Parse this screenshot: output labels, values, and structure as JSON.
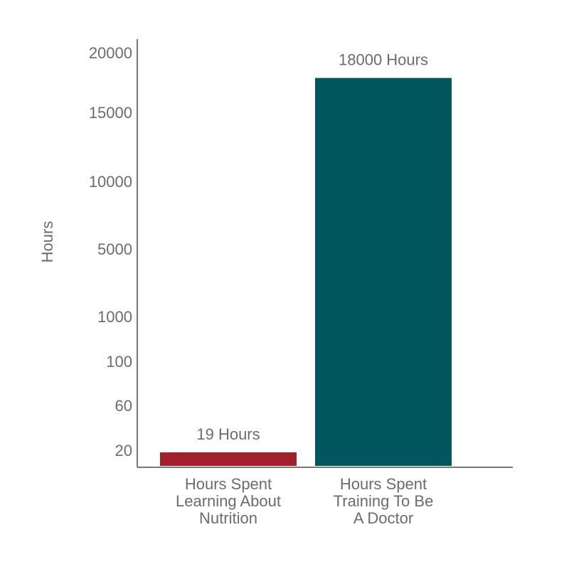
{
  "chart_data": {
    "type": "bar",
    "y_label": "Hours",
    "categories": [
      "Hours Spent\nLearning About\nNutrition",
      "Hours Spent\nTraining To Be\nA Doctor"
    ],
    "values": [
      19,
      18000
    ],
    "value_labels": [
      "19 Hours",
      "18000 Hours"
    ],
    "colors": [
      "#a0212b",
      "#02575e"
    ],
    "ylim": [
      0,
      20000
    ],
    "yticks": [
      20,
      60,
      100,
      1000,
      5000,
      10000,
      15000,
      20000
    ],
    "grid": false
  }
}
